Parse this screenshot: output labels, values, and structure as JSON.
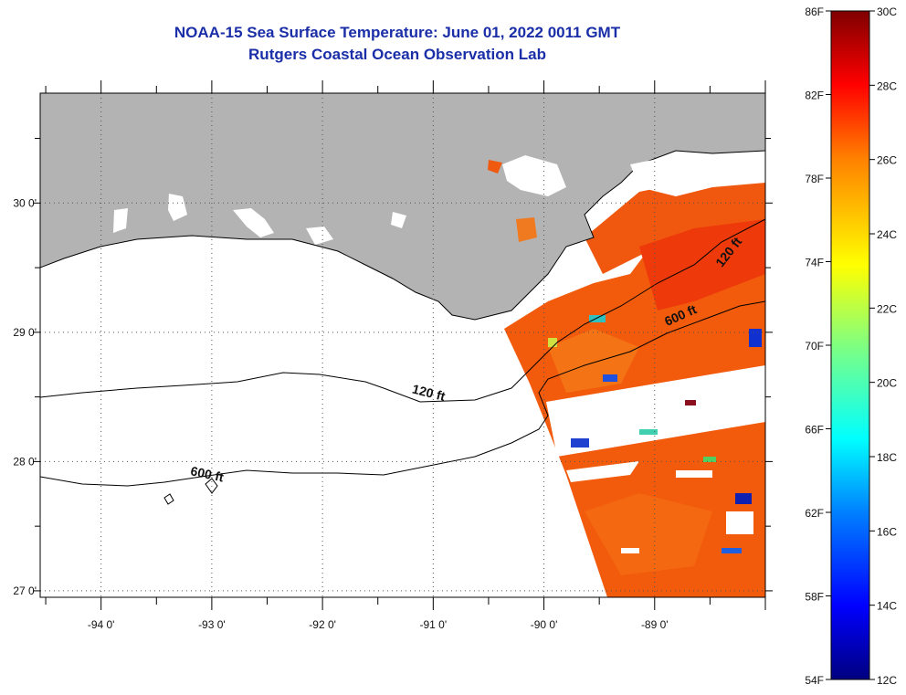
{
  "title": {
    "line1": "NOAA-15 Sea Surface Temperature:  June 01, 2022 0011 GMT",
    "line2": "Rutgers Coastal Ocean Observation Lab"
  },
  "map": {
    "lon_range": [
      -94.55,
      -88.0
    ],
    "lat_range": [
      26.95,
      30.85
    ],
    "lon_labels": [
      {
        "value": -94,
        "label": "-94 0'"
      },
      {
        "value": -93,
        "label": "-93 0'"
      },
      {
        "value": -92,
        "label": "-92 0'"
      },
      {
        "value": -91,
        "label": "-91 0'"
      },
      {
        "value": -90,
        "label": "-90 0'"
      },
      {
        "value": -89,
        "label": "-89 0'"
      }
    ],
    "lat_labels": [
      {
        "value": 30,
        "label": "30 0'"
      },
      {
        "value": 29,
        "label": "29 0'"
      },
      {
        "value": 28,
        "label": "28 0'"
      },
      {
        "value": 27,
        "label": "27 0'"
      }
    ],
    "contour_labels": [
      {
        "text": "120 ft",
        "lon": -91.05,
        "lat": 28.5,
        "angle": 14
      },
      {
        "text": "600 ft",
        "lon": -93.05,
        "lat": 27.87,
        "angle": 12
      },
      {
        "text": "120 ft",
        "lon": -88.3,
        "lat": 29.6,
        "angle": -52
      },
      {
        "text": "600 ft",
        "lon": -88.75,
        "lat": 29.1,
        "angle": -24
      }
    ],
    "colors": {
      "land": "#b3b3b3",
      "coast": "#000000",
      "sst_dominant": "#f25a0c"
    }
  },
  "colorbar": {
    "f_labels": [
      "86F",
      "82F",
      "78F",
      "74F",
      "70F",
      "66F",
      "62F",
      "58F",
      "54F"
    ],
    "c_labels": [
      "30C",
      "28C",
      "26C",
      "24C",
      "22C",
      "20C",
      "18C",
      "16C",
      "14C",
      "12C"
    ]
  }
}
